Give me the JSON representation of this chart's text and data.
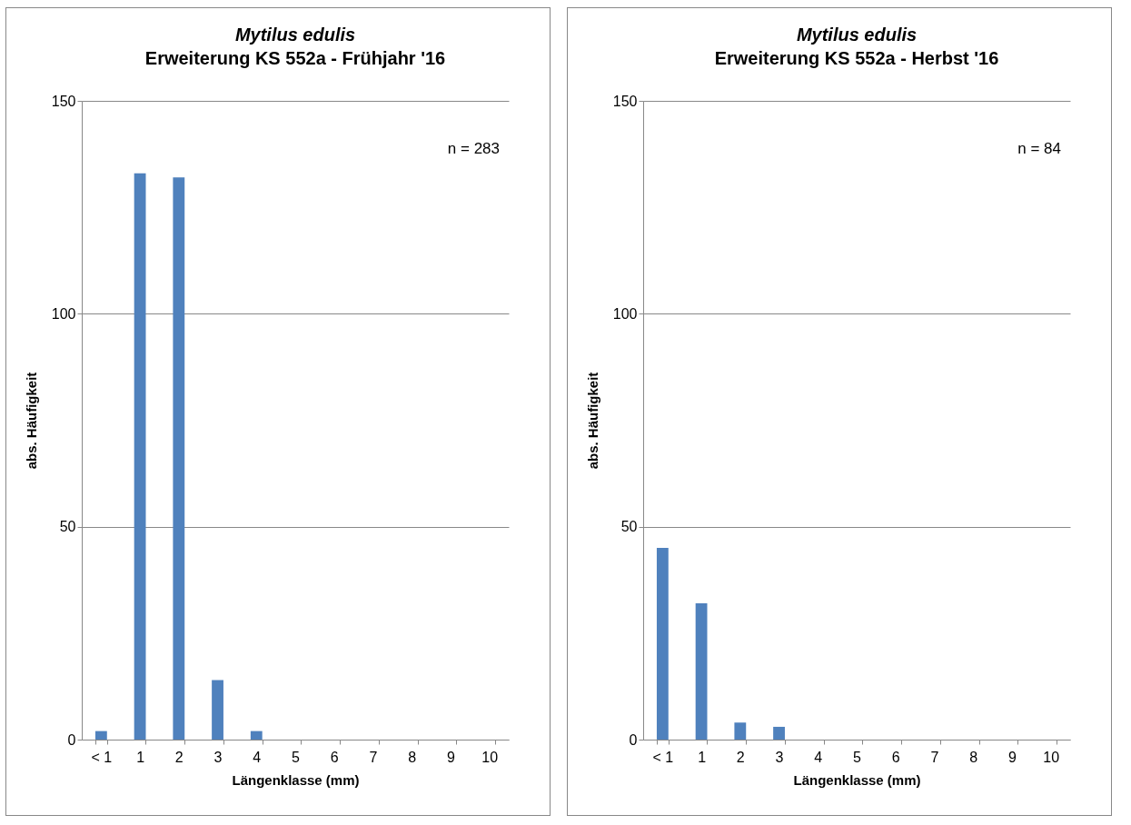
{
  "chart_data": [
    {
      "type": "bar",
      "title": "Mytilus edulis",
      "subtitle": "Erweiterung KS 552a - Frühjahr  '16",
      "xlabel": "Längenklasse (mm)",
      "ylabel": "abs. Häufigkeit",
      "categories": [
        "< 1",
        "1",
        "2",
        "3",
        "4",
        "5",
        "6",
        "7",
        "8",
        "9",
        "10"
      ],
      "values": [
        2,
        133,
        132,
        14,
        2,
        0,
        0,
        0,
        0,
        0,
        0
      ],
      "color": "#4f81bd",
      "ylim": [
        0,
        150
      ],
      "yticks": [
        0,
        50,
        100,
        150
      ],
      "grid": "y",
      "annotations": [
        "n = 283"
      ]
    },
    {
      "type": "bar",
      "title": "Mytilus edulis",
      "subtitle": "Erweiterung KS 552a - Herbst '16",
      "xlabel": "Längenklasse (mm)",
      "ylabel": "abs. Häufigkeit",
      "categories": [
        "< 1",
        "1",
        "2",
        "3",
        "4",
        "5",
        "6",
        "7",
        "8",
        "9",
        "10"
      ],
      "values": [
        45,
        32,
        4,
        3,
        0,
        0,
        0,
        0,
        0,
        0,
        0
      ],
      "color": "#4f81bd",
      "ylim": [
        0,
        150
      ],
      "yticks": [
        0,
        50,
        100,
        150
      ],
      "grid": "y",
      "annotations": [
        "n = 84"
      ]
    }
  ]
}
